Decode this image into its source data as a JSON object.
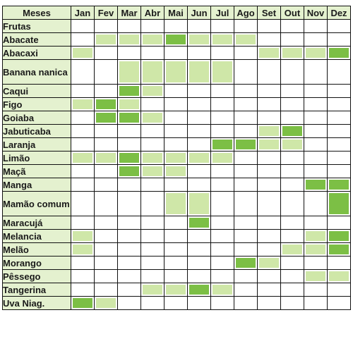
{
  "colors": {
    "light": "#cfe7a8",
    "dark": "#7cbf45",
    "header": "#e4f1cf",
    "border": "#111111"
  },
  "legend_levels": {
    "0": "none",
    "1": "light green",
    "2": "dark green"
  },
  "header": {
    "first": "Meses",
    "months": [
      "Jan",
      "Fev",
      "Mar",
      "Abr",
      "Mai",
      "Jun",
      "Jul",
      "Ago",
      "Set",
      "Out",
      "Nov",
      "Dez"
    ]
  },
  "section_label": "Frutas",
  "rows": [
    {
      "name": "Abacate",
      "lines": 1,
      "values": [
        0,
        1,
        1,
        1,
        2,
        1,
        1,
        1,
        0,
        0,
        0,
        0
      ]
    },
    {
      "name": "Abacaxi",
      "lines": 1,
      "values": [
        1,
        0,
        0,
        0,
        0,
        0,
        0,
        0,
        1,
        1,
        1,
        2
      ]
    },
    {
      "name": "Banana nanica",
      "lines": 2,
      "values": [
        0,
        0,
        1,
        1,
        1,
        1,
        1,
        0,
        0,
        0,
        0,
        0
      ]
    },
    {
      "name": "Caqui",
      "lines": 1,
      "values": [
        0,
        0,
        2,
        1,
        0,
        0,
        0,
        0,
        0,
        0,
        0,
        0
      ]
    },
    {
      "name": "Figo",
      "lines": 1,
      "values": [
        1,
        2,
        1,
        0,
        0,
        0,
        0,
        0,
        0,
        0,
        0,
        0
      ]
    },
    {
      "name": "Goiaba",
      "lines": 1,
      "values": [
        0,
        2,
        2,
        1,
        0,
        0,
        0,
        0,
        0,
        0,
        0,
        0
      ]
    },
    {
      "name": "Jabuticaba",
      "lines": 1,
      "values": [
        0,
        0,
        0,
        0,
        0,
        0,
        0,
        0,
        1,
        2,
        0,
        0
      ]
    },
    {
      "name": "Laranja",
      "lines": 1,
      "values": [
        0,
        0,
        0,
        0,
        0,
        0,
        2,
        2,
        1,
        1,
        0,
        0
      ]
    },
    {
      "name": "Limão",
      "lines": 1,
      "values": [
        1,
        1,
        2,
        1,
        1,
        1,
        1,
        0,
        0,
        0,
        0,
        0
      ]
    },
    {
      "name": "Maçã",
      "lines": 1,
      "values": [
        0,
        0,
        2,
        1,
        1,
        0,
        0,
        0,
        0,
        0,
        0,
        0
      ]
    },
    {
      "name": "Manga",
      "lines": 1,
      "values": [
        0,
        0,
        0,
        0,
        0,
        0,
        0,
        0,
        0,
        0,
        2,
        2
      ]
    },
    {
      "name": "Mamão comum",
      "lines": 2,
      "values": [
        0,
        0,
        0,
        0,
        1,
        1,
        0,
        0,
        0,
        0,
        0,
        2
      ]
    },
    {
      "name": "Maracujá",
      "lines": 1,
      "values": [
        0,
        0,
        0,
        0,
        0,
        2,
        0,
        0,
        0,
        0,
        0,
        0
      ]
    },
    {
      "name": "Melancia",
      "lines": 1,
      "values": [
        1,
        0,
        0,
        0,
        0,
        0,
        0,
        0,
        0,
        0,
        1,
        2
      ]
    },
    {
      "name": "Melão",
      "lines": 1,
      "values": [
        1,
        0,
        0,
        0,
        0,
        0,
        0,
        0,
        0,
        1,
        1,
        2
      ]
    },
    {
      "name": "Morango",
      "lines": 1,
      "values": [
        0,
        0,
        0,
        0,
        0,
        0,
        0,
        2,
        1,
        0,
        0,
        0
      ]
    },
    {
      "name": "Pêssego",
      "lines": 1,
      "values": [
        0,
        0,
        0,
        0,
        0,
        0,
        0,
        0,
        0,
        0,
        1,
        1
      ]
    },
    {
      "name": "Tangerina",
      "lines": 1,
      "values": [
        0,
        0,
        0,
        1,
        1,
        2,
        1,
        0,
        0,
        0,
        0,
        0
      ]
    },
    {
      "name": "Uva Niag.",
      "lines": 1,
      "values": [
        2,
        1,
        0,
        0,
        0,
        0,
        0,
        0,
        0,
        0,
        0,
        0
      ]
    }
  ]
}
